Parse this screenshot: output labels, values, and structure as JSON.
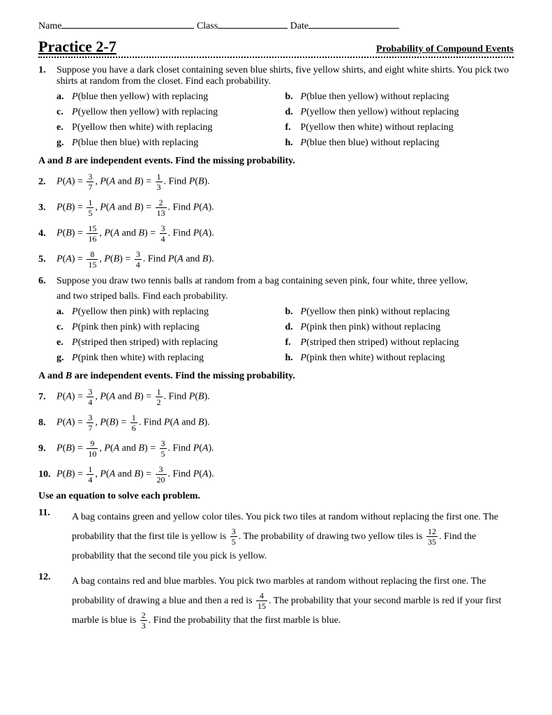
{
  "header": {
    "name": "Name",
    "class": "Class",
    "date": "Date"
  },
  "title": {
    "left": "Practice 2-7",
    "right": "Probability of Compound Events"
  },
  "q1": {
    "num": "1.",
    "text": "Suppose you have a dark closet containing seven blue shirts, five yellow shirts, and eight white shirts. You pick two shirts at random from the closet. Find each probability.",
    "rows": [
      {
        "aL": "a.",
        "aT": "P(blue then yellow) with replacing",
        "bL": "b.",
        "bT": "P(blue then yellow) without replacing",
        "aI": true,
        "bI": true
      },
      {
        "aL": "c.",
        "aT": "P(yellow then yellow) with replacing",
        "bL": "d.",
        "bT": "P(yellow then yellow) without replacing",
        "aI": true,
        "bI": true
      },
      {
        "aL": "e.",
        "aT": "P(yellow then white) with replacing",
        "bL": "f.",
        "bT": "P(yellow then white) without replacing",
        "aI": false,
        "bI": false
      },
      {
        "aL": "g.",
        "aT": "P(blue then blue) with replacing",
        "bL": "h.",
        "bT": "P(blue then blue) without replacing",
        "aI": true,
        "bI": true
      }
    ]
  },
  "sectA": "A and B are independent events. Find the missing probability.",
  "eqs1": [
    {
      "num": "2.",
      "lhs1": "P(A) = ",
      "f1n": "3",
      "f1d": "7",
      "mid": ", P(A and B) = ",
      "f2n": "1",
      "f2d": "3",
      "tail": ". Find P(B)."
    },
    {
      "num": "3.",
      "lhs1": "P(B) = ",
      "f1n": "1",
      "f1d": "5",
      "mid": ", P(A and B) = ",
      "f2n": "2",
      "f2d": "13",
      "tail": ". Find P(A)."
    },
    {
      "num": "4.",
      "lhs1": "P(B) = ",
      "f1n": "15",
      "f1d": "16",
      "mid": ", P(A and B) = ",
      "f2n": "3",
      "f2d": "4",
      "tail": ". Find P(A)."
    },
    {
      "num": "5.",
      "lhs1": "P(A) = ",
      "f1n": "8",
      "f1d": "15",
      "mid": ", P(B) = ",
      "f2n": "3",
      "f2d": "4",
      "tail": ". Find P(A and B)."
    }
  ],
  "q6": {
    "num": "6.",
    "text1": "Suppose you draw two tennis balls at random from a bag containing seven pink, four white, three yellow,",
    "text2": "and two striped balls. Find each probability.",
    "rows": [
      {
        "aL": "a.",
        "aT": "P(yellow then pink) with replacing",
        "bL": "b.",
        "bT": "P(yellow then pink) without replacing"
      },
      {
        "aL": "c.",
        "aT": "P(pink then pink) with replacing",
        "bL": "d.",
        "bT": "P(pink then pink) without replacing"
      },
      {
        "aL": "e.",
        "aT": "P(striped then striped) with replacing",
        "bL": "f.",
        "bT": "P(striped then striped) without replacing"
      },
      {
        "aL": "g.",
        "aT": "P(pink then white) with replacing",
        "bL": "h.",
        "bT": "P(pink then white) without replacing"
      }
    ]
  },
  "sectB": "A and B are independent events. Find the missing probability.",
  "eqs2": [
    {
      "num": "7.",
      "lhs1": "P(A) = ",
      "f1n": "3",
      "f1d": "4",
      "mid": ", P(A and B) = ",
      "f2n": "1",
      "f2d": "2",
      "tail": ". Find P(B)."
    },
    {
      "num": "8.",
      "lhs1": "P(A) = ",
      "f1n": "3",
      "f1d": "7",
      "mid": ", P(B) = ",
      "f2n": "1",
      "f2d": "6",
      "tail": ". Find P(A and B)."
    },
    {
      "num": "9.",
      "lhs1": "P(B) = ",
      "f1n": "9",
      "f1d": "10",
      "mid": ", P(A and B) = ",
      "f2n": "3",
      "f2d": "5",
      "tail": ". Find P(A)."
    },
    {
      "num": "10.",
      "lhs1": "P(B) = ",
      "f1n": "1",
      "f1d": "4",
      "mid": ", P(A and B) = ",
      "f2n": "3",
      "f2d": "20",
      "tail": ". Find P(A)."
    }
  ],
  "sectC": "Use an equation to solve each problem.",
  "q11": {
    "num": "11.",
    "t1": "A bag contains green and yellow color tiles. You pick two tiles at random without replacing the first one. The probability that the first tile is yellow is ",
    "f1n": "3",
    "f1d": "5",
    "t2": ".  The probability of drawing two yellow tiles is ",
    "f2n": "12",
    "f2d": "35",
    "t3": ". Find the probability that the second tile you pick is yellow."
  },
  "q12": {
    "num": "12.",
    "t1": "A bag contains red and blue marbles. You pick two marbles at random without replacing the first one. The probability of drawing a blue and then a red is ",
    "f1n": "4",
    "f1d": "15",
    "t2": ". The probability that your second marble is red if your first marble is blue is ",
    "f2n": "2",
    "f2d": "3",
    "t3": ". Find the probability that the first marble is blue."
  }
}
